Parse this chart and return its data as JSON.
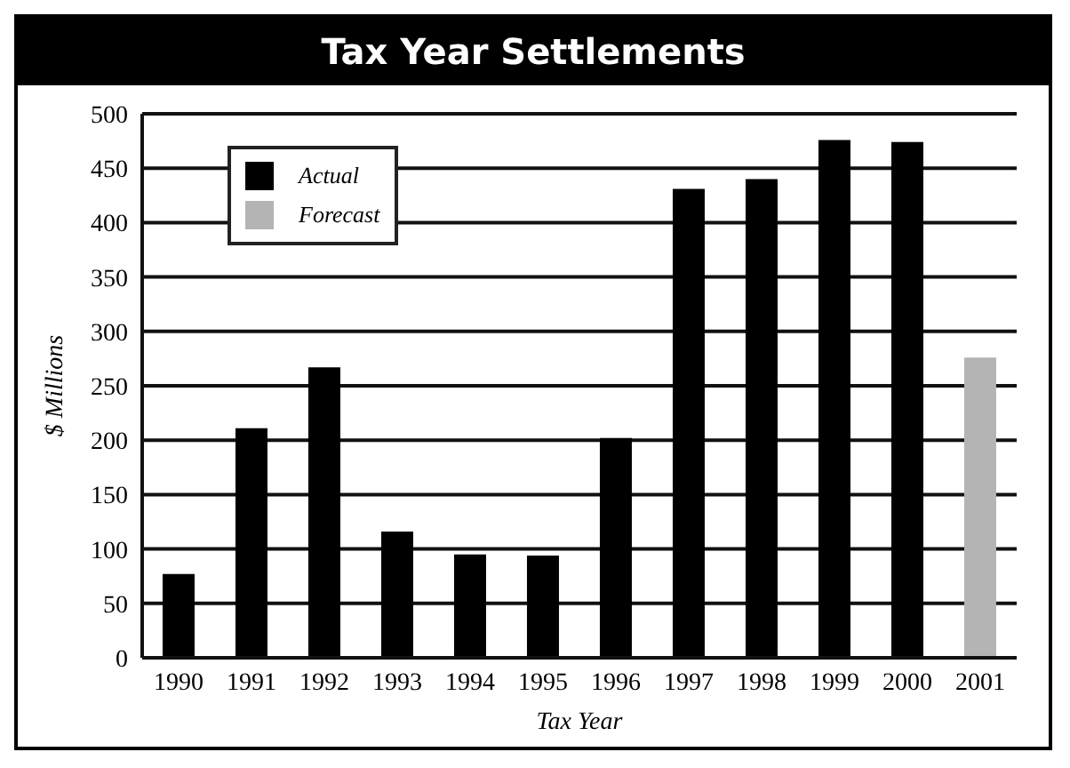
{
  "chart_data": {
    "type": "bar",
    "title": "Tax Year Settlements",
    "xlabel": "Tax Year",
    "ylabel": "$ Millions",
    "categories": [
      "1990",
      "1991",
      "1992",
      "1993",
      "1994",
      "1995",
      "1996",
      "1997",
      "1998",
      "1999",
      "2000",
      "2001"
    ],
    "series": [
      {
        "name": "Actual",
        "color": "#000000",
        "values": [
          77,
          211,
          267,
          116,
          95,
          94,
          202,
          431,
          440,
          476,
          474,
          null
        ]
      },
      {
        "name": "Forecast",
        "color": "#b4b4b4",
        "values": [
          null,
          null,
          null,
          null,
          null,
          null,
          null,
          null,
          null,
          null,
          null,
          276
        ]
      }
    ],
    "stacked": true,
    "ylim": [
      0,
      500
    ],
    "yticks": [
      0,
      50,
      100,
      150,
      200,
      250,
      300,
      350,
      400,
      450,
      500
    ],
    "grid": "y",
    "legend": "top left"
  }
}
